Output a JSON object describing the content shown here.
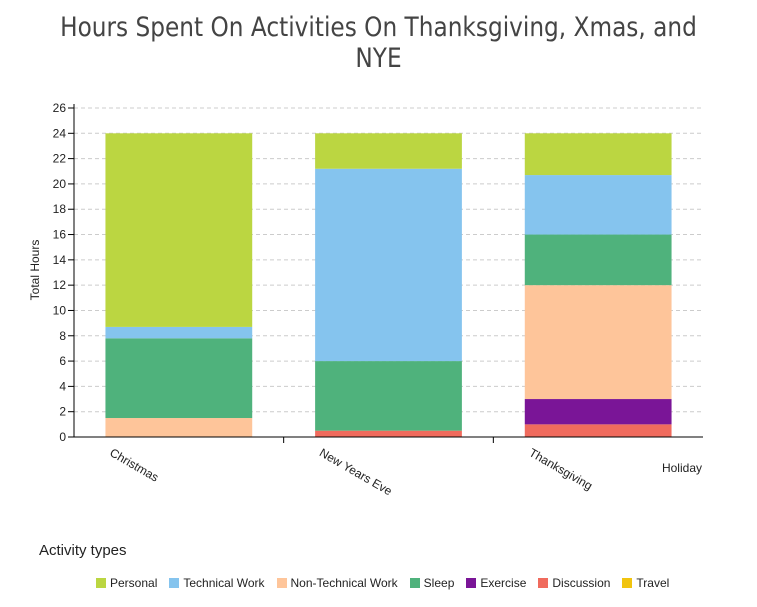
{
  "chart_data": {
    "type": "bar",
    "stacked": true,
    "title": "Hours Spent On Activities On Thanksgiving, Xmas, and NYE",
    "xlabel": "Holiday",
    "ylabel": "Total Hours",
    "ylim": [
      0,
      26
    ],
    "yticks": [
      0,
      2,
      4,
      6,
      8,
      10,
      12,
      14,
      16,
      18,
      20,
      22,
      24,
      26
    ],
    "grid": true,
    "legend_title": "Activity types",
    "legend_position": "bottom",
    "categories": [
      "Christmas",
      "New Years Eve",
      "Thanksgiving"
    ],
    "series": [
      {
        "name": "Travel",
        "color": "#f1c40f",
        "values": [
          0,
          0,
          0
        ]
      },
      {
        "name": "Discussion",
        "color": "#f06b5d",
        "values": [
          0,
          0.5,
          1
        ]
      },
      {
        "name": "Exercise",
        "color": "#7a1597",
        "values": [
          0,
          0,
          2
        ]
      },
      {
        "name": "Non-Technical Work",
        "color": "#fec59a",
        "values": [
          1.5,
          0,
          9
        ]
      },
      {
        "name": "Sleep",
        "color": "#4fb27c",
        "values": [
          6.3,
          5.5,
          4
        ]
      },
      {
        "name": "Technical Work",
        "color": "#85c4ee",
        "values": [
          0.9,
          15.2,
          4.7
        ]
      },
      {
        "name": "Personal",
        "color": "#bbd641",
        "values": [
          15.3,
          2.8,
          3.3
        ]
      }
    ],
    "legend_order": [
      "Personal",
      "Technical Work",
      "Non-Technical Work",
      "Sleep",
      "Exercise",
      "Discussion",
      "Travel"
    ]
  }
}
